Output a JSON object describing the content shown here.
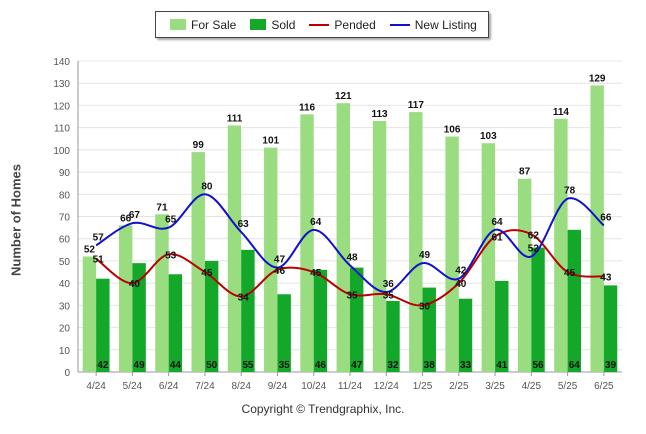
{
  "chart_data": {
    "type": "bar",
    "categories": [
      "4/24",
      "5/24",
      "6/24",
      "7/24",
      "8/24",
      "9/24",
      "10/24",
      "11/24",
      "12/24",
      "1/25",
      "2/25",
      "3/25",
      "4/25",
      "5/25",
      "6/25"
    ],
    "series": [
      {
        "name": "For Sale",
        "kind": "bar",
        "color": "#99dd80",
        "values": [
          52,
          66,
          71,
          99,
          111,
          101,
          116,
          121,
          113,
          117,
          106,
          103,
          87,
          114,
          129
        ]
      },
      {
        "name": "Sold",
        "kind": "bar",
        "color": "#14a82a",
        "values": [
          42,
          49,
          44,
          50,
          55,
          35,
          46,
          47,
          32,
          38,
          33,
          41,
          56,
          64,
          39
        ]
      },
      {
        "name": "Pended",
        "kind": "line",
        "color": "#bb0000",
        "values": [
          51,
          40,
          53,
          45,
          34,
          46,
          45,
          35,
          35,
          30,
          40,
          61,
          62,
          45,
          43
        ]
      },
      {
        "name": "New Listing",
        "kind": "line",
        "color": "#1111cc",
        "values": [
          57,
          67,
          65,
          80,
          63,
          47,
          64,
          48,
          36,
          49,
          42,
          64,
          52,
          78,
          66
        ]
      }
    ],
    "ylabel": "Number of Homes",
    "ylim": [
      0,
      140
    ],
    "yticks": [
      0,
      10,
      20,
      30,
      40,
      50,
      60,
      70,
      80,
      90,
      100,
      110,
      120,
      130,
      140
    ],
    "grid": true,
    "legend": "top-center"
  },
  "footer": {
    "copyright": "Copyright © Trendgraphix, Inc."
  }
}
